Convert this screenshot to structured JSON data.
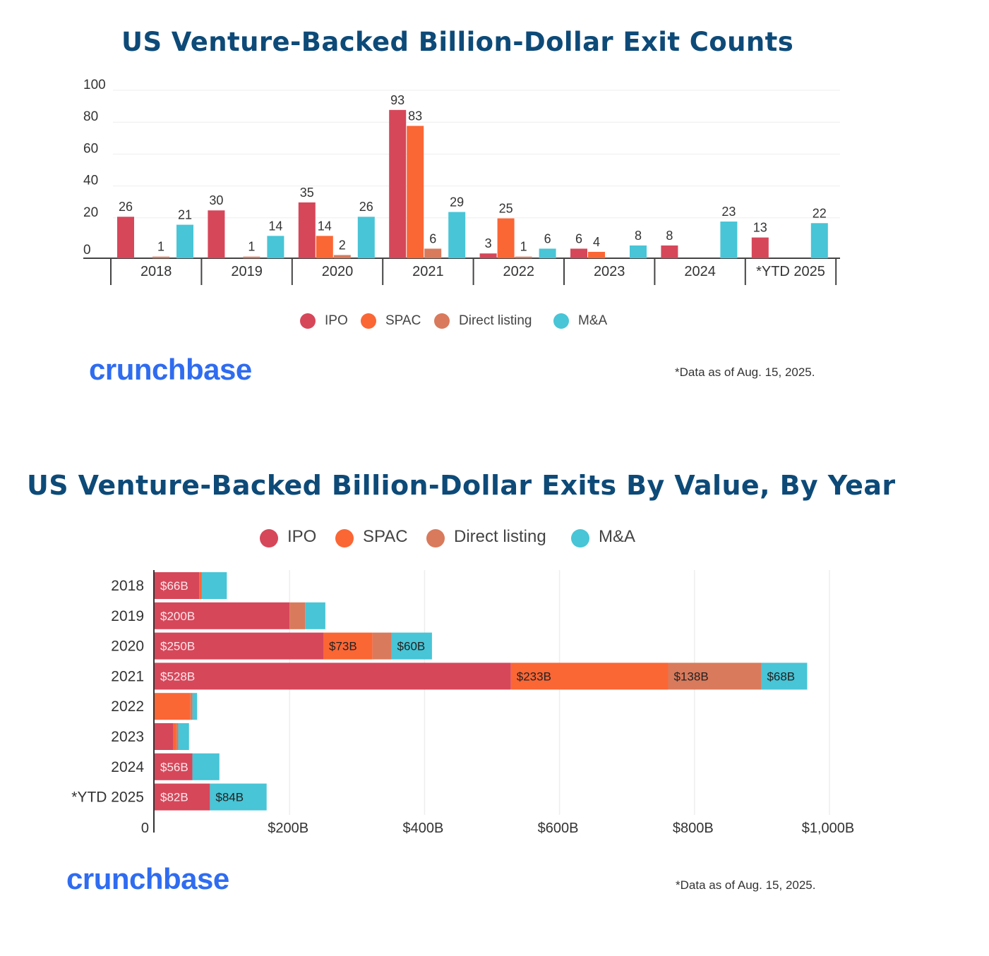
{
  "colors": {
    "title": "#0d4a78",
    "IPO": "#d6475a",
    "SPAC": "#fb6635",
    "Direct listing": "#d97a5c",
    "M&A": "#48c5d6",
    "logo": "#2f6cf0"
  },
  "chart_data": [
    {
      "type": "bar",
      "title": "US Venture-Backed Billion-Dollar Exit Counts",
      "categories": [
        "2018",
        "2019",
        "2020",
        "2021",
        "2022",
        "2023",
        "2024",
        "*YTD 2025"
      ],
      "series": [
        {
          "name": "IPO",
          "values": [
            26,
            30,
            35,
            93,
            3,
            6,
            8,
            13
          ]
        },
        {
          "name": "SPAC",
          "values": [
            null,
            null,
            14,
            83,
            25,
            4,
            null,
            null
          ]
        },
        {
          "name": "Direct listing",
          "values": [
            1,
            1,
            2,
            6,
            1,
            null,
            null,
            null
          ]
        },
        {
          "name": "M&A",
          "values": [
            21,
            14,
            26,
            29,
            6,
            8,
            23,
            22
          ]
        }
      ],
      "yticks": [
        "100",
        "80",
        "60",
        "40",
        "20",
        "0"
      ],
      "ylim": [
        0,
        100
      ],
      "grid": true,
      "legend": "bottom",
      "footnote": "*Data as of Aug. 15, 2025.",
      "logo_text": "crunchbase"
    },
    {
      "type": "bar",
      "orientation": "horizontal",
      "stacked": true,
      "title": "US Venture-Backed Billion-Dollar Exits By Value, By Year",
      "categories": [
        "2018",
        "2019",
        "2020",
        "2021",
        "2022",
        "2023",
        "2024",
        "*YTD 2025"
      ],
      "series": [
        {
          "name": "IPO",
          "values": [
            66,
            200,
            250,
            528,
            0,
            28,
            56,
            82
          ],
          "labels": [
            "$66B",
            "$200B",
            "$250B",
            "$528B",
            "",
            "",
            "$56B",
            "$82B"
          ]
        },
        {
          "name": "SPAC",
          "values": [
            4,
            0,
            73,
            233,
            53,
            4,
            0,
            0
          ],
          "labels": [
            "",
            "",
            "$73B",
            "$233B",
            "",
            "",
            "",
            ""
          ]
        },
        {
          "name": "Direct listing",
          "values": [
            0,
            23,
            28,
            138,
            3,
            3,
            0,
            0
          ],
          "labels": [
            "",
            "",
            "",
            "$138B",
            "",
            "",
            "",
            ""
          ]
        },
        {
          "name": "M&A",
          "values": [
            37,
            30,
            60,
            68,
            7,
            16,
            40,
            84
          ],
          "labels": [
            "",
            "",
            "$60B",
            "$68B",
            "",
            "",
            "",
            "$84B"
          ]
        }
      ],
      "xticks": [
        "0",
        "$200B",
        "$400B",
        "$600B",
        "$800B",
        "$1,000B"
      ],
      "xlim": [
        0,
        1000
      ],
      "grid": true,
      "legend": "top",
      "footnote": "*Data as of Aug. 15, 2025.",
      "logo_text": "crunchbase"
    }
  ]
}
